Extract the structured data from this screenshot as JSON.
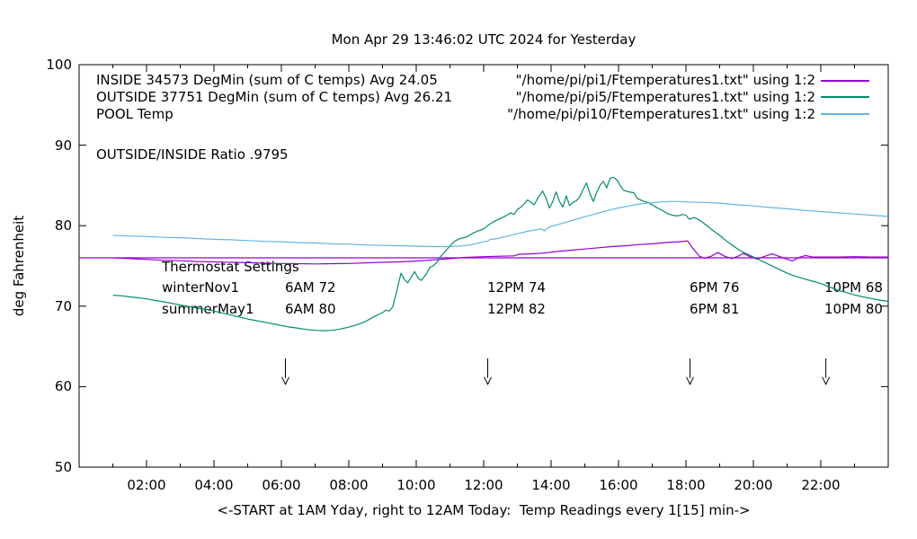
{
  "title": "Mon Apr 29 13:46:02 UTC 2024 for Yesterday",
  "legend": {
    "rows": [
      {
        "label": "INSIDE 34573 DegMin (sum of C temps) Avg 24.05",
        "source": "\"/home/pi/pi1/Ftemperatures1.txt\" using 1:2",
        "color": "#9400d3"
      },
      {
        "label": "OUTSIDE 37751 DegMin (sum of C temps) Avg 26.21",
        "source": "\"/home/pi/pi5/Ftemperatures1.txt\" using 1:2",
        "color": "#008c6e"
      },
      {
        "label": "POOL Temp",
        "source": "\"/home/pi/pi10/Ftemperatures1.txt\" using 1:2",
        "color": "#63b5e6"
      }
    ]
  },
  "annotations": {
    "ratio_text": "OUTSIDE/INSIDE Ratio .9795",
    "thermostat": {
      "heading": "Thermostat Settings",
      "rows": [
        {
          "name": "winterNov1",
          "settings": [
            "6AM 72",
            "12PM 74",
            "6PM 76",
            "10PM 68"
          ]
        },
        {
          "name": "summerMay1",
          "settings": [
            "6AM 80",
            "12PM 82",
            "6PM 81",
            "10PM 80"
          ]
        }
      ]
    }
  },
  "axes": {
    "ylabel": "deg Fahrenheit",
    "xlabel": "<-START at 1AM Yday, right to 12AM Today:  Temp Readings every 1[15] min->",
    "yticks": [
      {
        "v": 100,
        "label": "100"
      },
      {
        "v": 90,
        "label": "90"
      },
      {
        "v": 80,
        "label": "80"
      },
      {
        "v": 70,
        "label": "70"
      },
      {
        "v": 60,
        "label": "60"
      },
      {
        "v": 50,
        "label": "50"
      }
    ],
    "xticks": [
      {
        "t": 2,
        "label": "02:00"
      },
      {
        "t": 4,
        "label": "04:00"
      },
      {
        "t": 6,
        "label": "06:00"
      },
      {
        "t": 8,
        "label": "08:00"
      },
      {
        "t": 10,
        "label": "10:00"
      },
      {
        "t": 12,
        "label": "12:00"
      },
      {
        "t": 14,
        "label": "14:00"
      },
      {
        "t": 16,
        "label": "16:00"
      },
      {
        "t": 18,
        "label": "18:00"
      },
      {
        "t": 20,
        "label": "20:00"
      },
      {
        "t": 22,
        "label": "22:00"
      }
    ]
  },
  "chart_data": {
    "type": "line",
    "title": "Mon Apr 29 13:46:02 UTC 2024 for Yesterday",
    "xlabel": "<-START at 1AM Yday, right to 12AM Today:  Temp Readings every 1[15] min->",
    "ylabel": "deg Fahrenheit",
    "x_unit": "hour of day; 1 = 1AM yesterday, 24 = 12AM today",
    "xlim": [
      0,
      24
    ],
    "ylim": [
      50,
      100
    ],
    "grid": false,
    "legend_position": "top inside",
    "arrows_at_hours": [
      6.12,
      12.12,
      18.12,
      22.15
    ],
    "arrow_y_range_F": [
      63.5,
      60.3
    ],
    "series": [
      {
        "id": "inside",
        "name": "INSIDE 34573 DegMin (sum of C temps) Avg 24.05",
        "color": "#9400d3",
        "points": [
          [
            1,
            76
          ],
          [
            1.5,
            75.9
          ],
          [
            2,
            75.8
          ],
          [
            2.5,
            75.7
          ],
          [
            3,
            75.65
          ],
          [
            3.5,
            75.55
          ],
          [
            4,
            75.5
          ],
          [
            4.5,
            75.45
          ],
          [
            5,
            75.4
          ],
          [
            5.5,
            75.35
          ],
          [
            6,
            75.3
          ],
          [
            6.5,
            75.28
          ],
          [
            7,
            75.25
          ],
          [
            7.5,
            75.28
          ],
          [
            8,
            75.3
          ],
          [
            8.5,
            75.38
          ],
          [
            9,
            75.45
          ],
          [
            9.5,
            75.5
          ],
          [
            10,
            75.6
          ],
          [
            10.5,
            75.75
          ],
          [
            11,
            75.9
          ],
          [
            11.4,
            76.05
          ],
          [
            12,
            76.15
          ],
          [
            12.5,
            76.2
          ],
          [
            12.9,
            76.25
          ],
          [
            13.05,
            76.45
          ],
          [
            13.4,
            76.5
          ],
          [
            13.8,
            76.6
          ],
          [
            14.2,
            76.8
          ],
          [
            14.6,
            76.95
          ],
          [
            15,
            77.1
          ],
          [
            15.4,
            77.25
          ],
          [
            15.8,
            77.4
          ],
          [
            16.2,
            77.5
          ],
          [
            16.6,
            77.65
          ],
          [
            17,
            77.75
          ],
          [
            17.4,
            77.9
          ],
          [
            17.8,
            78
          ],
          [
            18.05,
            78.1
          ],
          [
            18.2,
            77.2
          ],
          [
            18.4,
            76.2
          ],
          [
            18.55,
            75.95
          ],
          [
            18.75,
            76.2
          ],
          [
            18.95,
            76.65
          ],
          [
            19.15,
            76.2
          ],
          [
            19.35,
            75.9
          ],
          [
            19.55,
            76.2
          ],
          [
            19.7,
            76.55
          ],
          [
            19.9,
            76.15
          ],
          [
            20.1,
            75.85
          ],
          [
            20.35,
            76.2
          ],
          [
            20.55,
            76.5
          ],
          [
            20.75,
            76.2
          ],
          [
            20.95,
            75.9
          ],
          [
            21.15,
            75.6
          ],
          [
            21.35,
            76.05
          ],
          [
            21.55,
            76.3
          ],
          [
            21.75,
            76.1
          ],
          [
            22,
            76.1
          ],
          [
            22.5,
            76.1
          ],
          [
            23,
            76.15
          ],
          [
            23.5,
            76.1
          ],
          [
            24,
            76.1
          ]
        ]
      },
      {
        "id": "inside-baseline",
        "name": "INSIDE flat reference at 76 F",
        "color": "#9400d3",
        "points": [
          [
            0,
            76
          ],
          [
            24,
            76
          ]
        ]
      },
      {
        "id": "outside",
        "name": "OUTSIDE 37751 DegMin (sum of C temps) Avg 26.21",
        "color": "#008c6e",
        "points": [
          [
            1,
            71.35
          ],
          [
            1.25,
            71.3
          ],
          [
            1.5,
            71.15
          ],
          [
            1.75,
            71.05
          ],
          [
            2,
            70.9
          ],
          [
            2.25,
            70.7
          ],
          [
            2.5,
            70.55
          ],
          [
            2.75,
            70.35
          ],
          [
            3,
            70.15
          ],
          [
            3.25,
            69.95
          ],
          [
            3.5,
            69.75
          ],
          [
            3.75,
            69.6
          ],
          [
            4,
            69.4
          ],
          [
            4.25,
            69.15
          ],
          [
            4.5,
            68.9
          ],
          [
            4.75,
            68.65
          ],
          [
            5,
            68.4
          ],
          [
            5.25,
            68.2
          ],
          [
            5.5,
            68
          ],
          [
            5.75,
            67.8
          ],
          [
            6,
            67.6
          ],
          [
            6.25,
            67.4
          ],
          [
            6.5,
            67.25
          ],
          [
            6.75,
            67.1
          ],
          [
            7,
            67
          ],
          [
            7.25,
            66.95
          ],
          [
            7.5,
            67
          ],
          [
            7.75,
            67.15
          ],
          [
            8,
            67.4
          ],
          [
            8.25,
            67.7
          ],
          [
            8.5,
            68.1
          ],
          [
            8.75,
            68.7
          ],
          [
            9,
            69.2
          ],
          [
            9.1,
            69.5
          ],
          [
            9.2,
            69.4
          ],
          [
            9.3,
            69.9
          ],
          [
            9.4,
            71.5
          ],
          [
            9.5,
            73.3
          ],
          [
            9.55,
            74.1
          ],
          [
            9.65,
            73.3
          ],
          [
            9.75,
            72.9
          ],
          [
            9.85,
            73.6
          ],
          [
            9.95,
            74.3
          ],
          [
            10.05,
            73.5
          ],
          [
            10.15,
            73.2
          ],
          [
            10.3,
            74
          ],
          [
            10.4,
            74.8
          ],
          [
            10.5,
            75
          ],
          [
            10.6,
            75.4
          ],
          [
            10.75,
            76.3
          ],
          [
            10.9,
            77
          ],
          [
            11,
            77.5
          ],
          [
            11.15,
            78.1
          ],
          [
            11.3,
            78.4
          ],
          [
            11.5,
            78.6
          ],
          [
            11.65,
            79
          ],
          [
            11.8,
            79.3
          ],
          [
            12,
            79.6
          ],
          [
            12.15,
            80.1
          ],
          [
            12.3,
            80.5
          ],
          [
            12.5,
            80.9
          ],
          [
            12.65,
            81.2
          ],
          [
            12.8,
            81.6
          ],
          [
            12.9,
            81.4
          ],
          [
            13,
            82
          ],
          [
            13.1,
            82.3
          ],
          [
            13.2,
            82.7
          ],
          [
            13.3,
            83.2
          ],
          [
            13.4,
            82.9
          ],
          [
            13.5,
            82.6
          ],
          [
            13.6,
            83.4
          ],
          [
            13.75,
            84.3
          ],
          [
            13.85,
            83.4
          ],
          [
            13.95,
            82.2
          ],
          [
            14.05,
            83
          ],
          [
            14.15,
            84.2
          ],
          [
            14.25,
            83
          ],
          [
            14.35,
            82.3
          ],
          [
            14.45,
            83.7
          ],
          [
            14.55,
            82.5
          ],
          [
            14.65,
            82.9
          ],
          [
            14.75,
            83.1
          ],
          [
            14.85,
            83.6
          ],
          [
            14.95,
            84.5
          ],
          [
            15.05,
            85.3
          ],
          [
            15.15,
            84
          ],
          [
            15.25,
            83
          ],
          [
            15.35,
            84.1
          ],
          [
            15.45,
            85
          ],
          [
            15.55,
            85.5
          ],
          [
            15.65,
            84.7
          ],
          [
            15.75,
            85.9
          ],
          [
            15.85,
            86
          ],
          [
            15.95,
            85.7
          ],
          [
            16.05,
            85
          ],
          [
            16.15,
            84.4
          ],
          [
            16.3,
            84.2
          ],
          [
            16.45,
            84.1
          ],
          [
            16.55,
            83.4
          ],
          [
            16.7,
            83.1
          ],
          [
            16.85,
            82.9
          ],
          [
            17,
            82.6
          ],
          [
            17.15,
            82.2
          ],
          [
            17.3,
            81.9
          ],
          [
            17.45,
            81.5
          ],
          [
            17.6,
            81.3
          ],
          [
            17.75,
            81.2
          ],
          [
            17.9,
            81.4
          ],
          [
            18,
            81.3
          ],
          [
            18.1,
            80.8
          ],
          [
            18.25,
            81
          ],
          [
            18.4,
            80.7
          ],
          [
            18.5,
            80.4
          ],
          [
            18.65,
            79.9
          ],
          [
            18.8,
            79.4
          ],
          [
            19,
            78.8
          ],
          [
            19.2,
            78.1
          ],
          [
            19.4,
            77.5
          ],
          [
            19.6,
            76.9
          ],
          [
            19.8,
            76.5
          ],
          [
            20,
            76.1
          ],
          [
            20.25,
            75.6
          ],
          [
            20.5,
            75.1
          ],
          [
            20.75,
            74.6
          ],
          [
            21,
            74.1
          ],
          [
            21.25,
            73.7
          ],
          [
            21.5,
            73.4
          ],
          [
            21.75,
            73.1
          ],
          [
            22,
            72.8
          ],
          [
            22.25,
            72.4
          ],
          [
            22.5,
            72
          ],
          [
            22.75,
            71.7
          ],
          [
            23,
            71.4
          ],
          [
            23.25,
            71.15
          ],
          [
            23.5,
            70.95
          ],
          [
            23.75,
            70.75
          ],
          [
            24,
            70.6
          ]
        ]
      },
      {
        "id": "pool",
        "name": "POOL Temp",
        "color": "#63b5e6",
        "points": [
          [
            1,
            78.8
          ],
          [
            1.5,
            78.7
          ],
          [
            2,
            78.65
          ],
          [
            2.5,
            78.55
          ],
          [
            3,
            78.5
          ],
          [
            3.5,
            78.4
          ],
          [
            4,
            78.3
          ],
          [
            4.5,
            78.25
          ],
          [
            5,
            78.15
          ],
          [
            5.5,
            78.05
          ],
          [
            6,
            78
          ],
          [
            6.5,
            77.9
          ],
          [
            7,
            77.85
          ],
          [
            7.5,
            77.75
          ],
          [
            8,
            77.7
          ],
          [
            8.5,
            77.6
          ],
          [
            9,
            77.55
          ],
          [
            9.5,
            77.5
          ],
          [
            10,
            77.45
          ],
          [
            10.5,
            77.4
          ],
          [
            11,
            77.4
          ],
          [
            11.25,
            77.45
          ],
          [
            11.5,
            77.55
          ],
          [
            11.75,
            77.75
          ],
          [
            12,
            78
          ],
          [
            12.1,
            78.05
          ],
          [
            12.2,
            78.3
          ],
          [
            12.35,
            78.35
          ],
          [
            12.5,
            78.5
          ],
          [
            12.75,
            78.75
          ],
          [
            13,
            79
          ],
          [
            13.25,
            79.25
          ],
          [
            13.5,
            79.45
          ],
          [
            13.7,
            79.6
          ],
          [
            13.8,
            79.35
          ],
          [
            13.9,
            79.7
          ],
          [
            14,
            79.9
          ],
          [
            14.25,
            80.2
          ],
          [
            14.5,
            80.5
          ],
          [
            14.75,
            80.8
          ],
          [
            15,
            81.1
          ],
          [
            15.25,
            81.4
          ],
          [
            15.5,
            81.7
          ],
          [
            15.75,
            81.95
          ],
          [
            16,
            82.2
          ],
          [
            16.25,
            82.4
          ],
          [
            16.5,
            82.6
          ],
          [
            16.75,
            82.75
          ],
          [
            17,
            82.85
          ],
          [
            17.25,
            82.95
          ],
          [
            17.5,
            83
          ],
          [
            17.75,
            83
          ],
          [
            18,
            82.95
          ],
          [
            18.25,
            82.9
          ],
          [
            18.5,
            82.9
          ],
          [
            19,
            82.8
          ],
          [
            19.5,
            82.6
          ],
          [
            20,
            82.45
          ],
          [
            20.5,
            82.25
          ],
          [
            21,
            82.1
          ],
          [
            21.5,
            81.9
          ],
          [
            22,
            81.75
          ],
          [
            22.5,
            81.6
          ],
          [
            23,
            81.45
          ],
          [
            23.5,
            81.3
          ],
          [
            24,
            81.15
          ]
        ]
      }
    ]
  }
}
